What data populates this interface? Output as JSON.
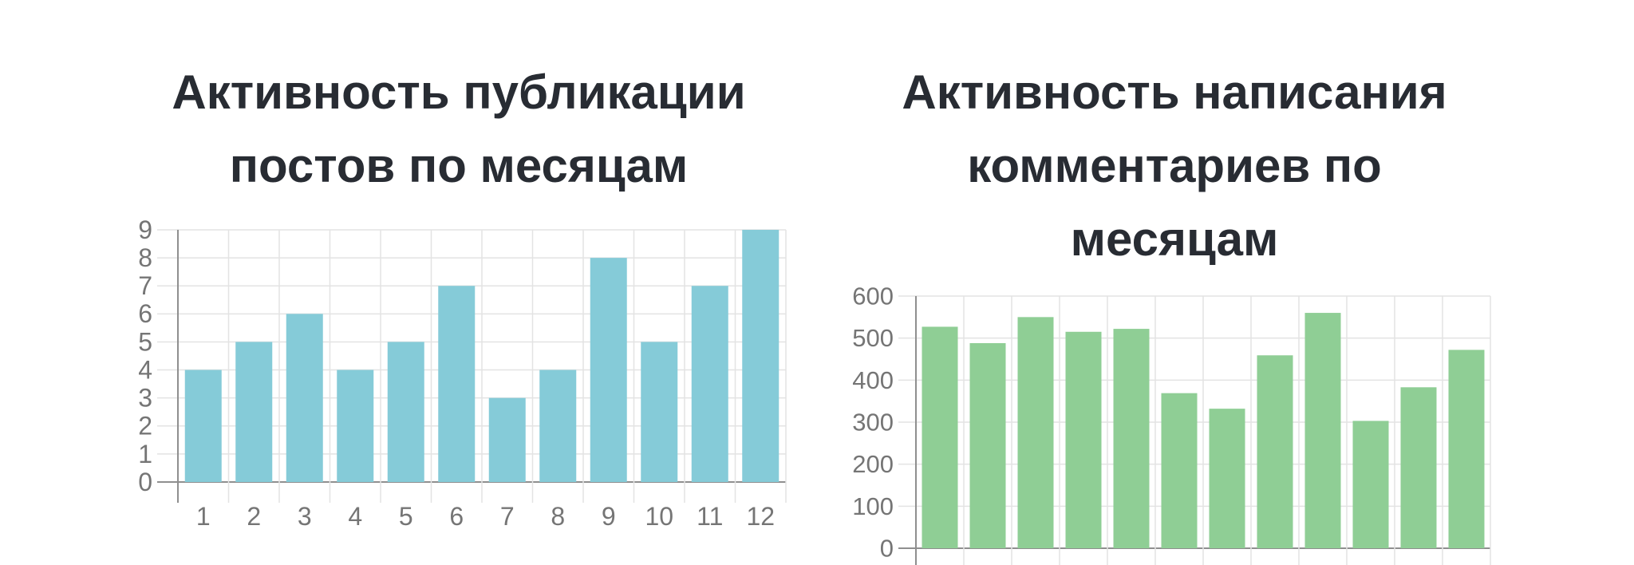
{
  "style": {
    "background": "#ffffff",
    "title_color": "#282c33",
    "grid_color": "#e3e3e3",
    "axis_color": "#8f8f8f",
    "tick_label_color": "#757575",
    "posts_bar_color": "#85cbd8",
    "comments_bar_color": "#8fce95"
  },
  "chart_data": [
    {
      "type": "bar",
      "title": "Активность публикации постов по месяцам",
      "title_wrapped": "Активность публикации\nпостов по месяцам",
      "categories": [
        "1",
        "2",
        "3",
        "4",
        "5",
        "6",
        "7",
        "8",
        "9",
        "10",
        "11",
        "12"
      ],
      "values": [
        4,
        5,
        6,
        4,
        5,
        7,
        3,
        4,
        8,
        5,
        7,
        9
      ],
      "xlabel": "",
      "ylabel": "",
      "ylim": [
        0,
        9
      ],
      "yticks": [
        0,
        1,
        2,
        3,
        4,
        5,
        6,
        7,
        8,
        9
      ],
      "ytick_labels": [
        "0",
        "1",
        "2",
        "3",
        "4",
        "5",
        "6",
        "7",
        "8",
        "9"
      ],
      "x_tick_labels_visible": true,
      "grid": true,
      "legend_position": "none",
      "bar_color": "#85cbd8"
    },
    {
      "type": "bar",
      "title": "Активность написания комментариев по месяцам",
      "title_wrapped": "Активность написания\nкомментариев по\nмесяцам",
      "categories": [
        "",
        "",
        "",
        "",
        "",
        "",
        "",
        "",
        "",
        "",
        "",
        ""
      ],
      "values": [
        527,
        488,
        550,
        515,
        522,
        369,
        332,
        459,
        560,
        303,
        383,
        472
      ],
      "xlabel": "",
      "ylabel": "",
      "ylim": [
        0,
        600
      ],
      "yticks": [
        0,
        100,
        200,
        300,
        400,
        500,
        600
      ],
      "ytick_labels": [
        "0",
        "100",
        "200",
        "300",
        "400",
        "500",
        "600"
      ],
      "x_tick_labels_visible": false,
      "grid": true,
      "legend_position": "none",
      "bar_color": "#8fce95"
    }
  ]
}
